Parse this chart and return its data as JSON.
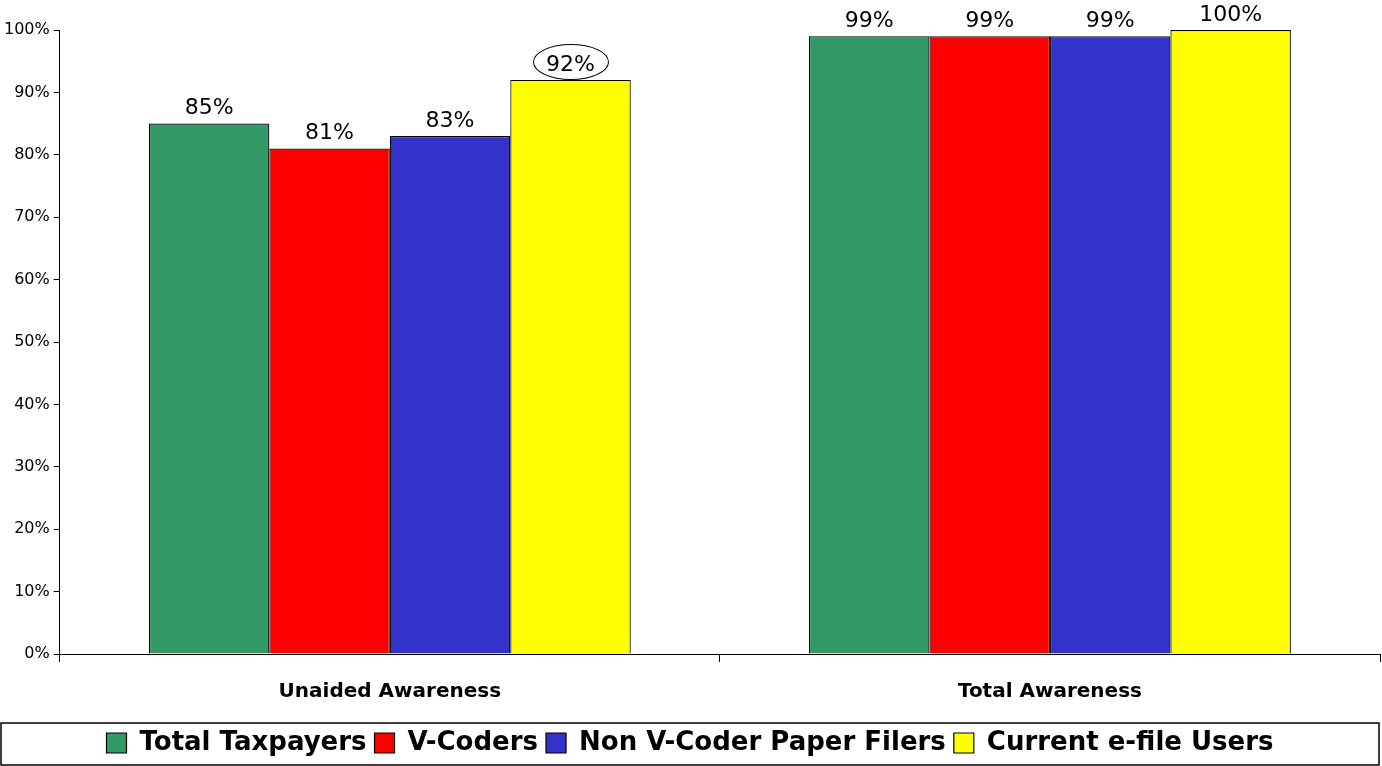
{
  "chart_data": {
    "type": "bar",
    "categories": [
      "Unaided Awareness",
      "Total Awareness"
    ],
    "series": [
      {
        "name": "Total Taxpayers",
        "color": "#339966",
        "values": [
          85,
          99
        ],
        "value_labels": [
          "85%",
          "99%"
        ]
      },
      {
        "name": "V-Coders",
        "color": "#ff0000",
        "values": [
          81,
          99
        ],
        "value_labels": [
          "81%",
          "99%"
        ]
      },
      {
        "name": "Non V-Coder Paper Filers",
        "color": "#3333cc",
        "values": [
          83,
          99
        ],
        "value_labels": [
          "83%",
          "99%"
        ]
      },
      {
        "name": "Current e-file Users",
        "color": "#ffff00",
        "values": [
          92,
          100
        ],
        "value_labels": [
          "92%",
          "100%"
        ]
      }
    ],
    "ylim": [
      0,
      100
    ],
    "yticks": [
      {
        "value": 0,
        "label": "0%"
      },
      {
        "value": 10,
        "label": "10%"
      },
      {
        "value": 20,
        "label": "20%"
      },
      {
        "value": 30,
        "label": "30%"
      },
      {
        "value": 40,
        "label": "40%"
      },
      {
        "value": 50,
        "label": "50%"
      },
      {
        "value": 60,
        "label": "60%"
      },
      {
        "value": 70,
        "label": "70%"
      },
      {
        "value": 80,
        "label": "80%"
      },
      {
        "value": 90,
        "label": "90%"
      },
      {
        "value": 100,
        "label": "100%"
      }
    ],
    "grid": false,
    "legend": "bottom"
  }
}
